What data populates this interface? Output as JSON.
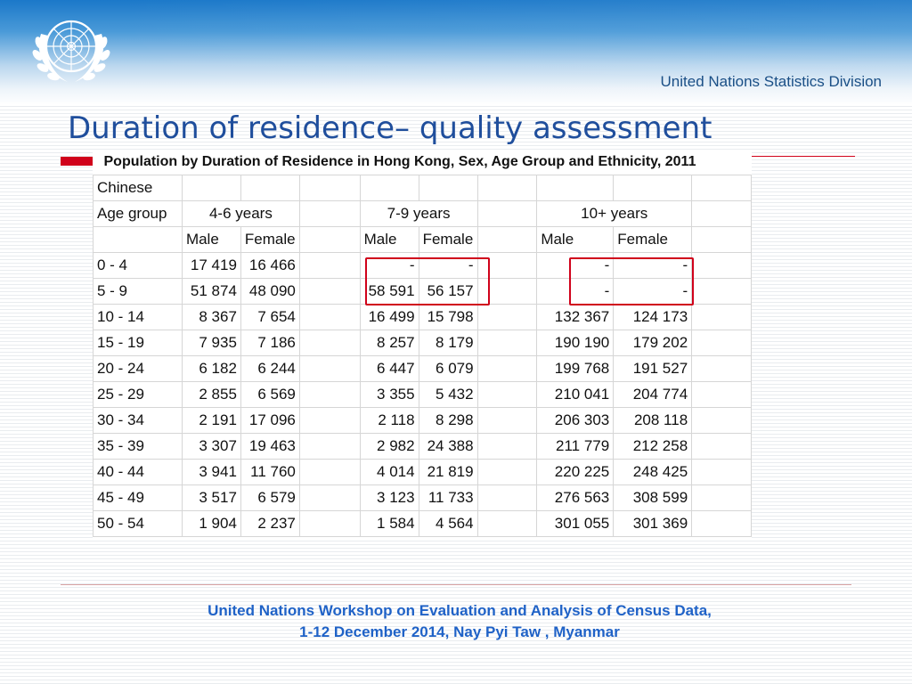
{
  "header": {
    "organization": "United Nations Statistics Division"
  },
  "slide": {
    "title": "Duration of residence– quality assessment"
  },
  "table": {
    "caption": "Population by Duration of Residence in Hong Kong, Sex, Age Group and Ethnicity, 2011",
    "ethnicity": "Chinese",
    "age_group_label": "Age group",
    "duration_groups": [
      "4-6 years",
      "7-9 years",
      "10+ years"
    ],
    "sex_labels": [
      "Male",
      "Female"
    ],
    "rows": [
      {
        "age": "0 - 4",
        "m46": "17 419",
        "f46": "16 466",
        "m79": "-",
        "f79": "-",
        "m10": "-",
        "f10": "-"
      },
      {
        "age": "5 - 9",
        "m46": "51 874",
        "f46": "48 090",
        "m79": "58 591",
        "f79": "56 157",
        "m10": "-",
        "f10": "-"
      },
      {
        "age": "10 - 14",
        "m46": "8 367",
        "f46": "7 654",
        "m79": "16 499",
        "f79": "15 798",
        "m10": "132 367",
        "f10": "124 173"
      },
      {
        "age": "15 - 19",
        "m46": "7 935",
        "f46": "7 186",
        "m79": "8 257",
        "f79": "8 179",
        "m10": "190 190",
        "f10": "179 202"
      },
      {
        "age": "20 - 24",
        "m46": "6 182",
        "f46": "6 244",
        "m79": "6 447",
        "f79": "6 079",
        "m10": "199 768",
        "f10": "191 527"
      },
      {
        "age": "25 - 29",
        "m46": "2 855",
        "f46": "6 569",
        "m79": "3 355",
        "f79": "5 432",
        "m10": "210 041",
        "f10": "204 774"
      },
      {
        "age": "30 - 34",
        "m46": "2 191",
        "f46": "17 096",
        "m79": "2 118",
        "f79": "8 298",
        "m10": "206 303",
        "f10": "208 118"
      },
      {
        "age": "35 - 39",
        "m46": "3 307",
        "f46": "19 463",
        "m79": "2 982",
        "f79": "24 388",
        "m10": "211 779",
        "f10": "212 258"
      },
      {
        "age": "40 - 44",
        "m46": "3 941",
        "f46": "11 760",
        "m79": "4 014",
        "f79": "21 819",
        "m10": "220 225",
        "f10": "248 425"
      },
      {
        "age": "45 - 49",
        "m46": "3 517",
        "f46": "6 579",
        "m79": "3 123",
        "f79": "11 733",
        "m10": "276 563",
        "f10": "308 599"
      },
      {
        "age": "50 - 54",
        "m46": "1 904",
        "f46": "2 237",
        "m79": "1 584",
        "f79": "4 564",
        "m10": "301 055",
        "f10": "301 369"
      }
    ]
  },
  "footer": {
    "line1": "United Nations Workshop on  Evaluation and Analysis of Census Data,",
    "line2": "1-12 December 2014,  Nay Pyi Taw , Myanmar"
  },
  "colors": {
    "title": "#1f4e9c",
    "accent_red": "#d0021b",
    "footer_text": "#1f62c7",
    "banner_blue": "#1b78c9"
  },
  "icons": {
    "logo": "un-emblem-icon"
  }
}
